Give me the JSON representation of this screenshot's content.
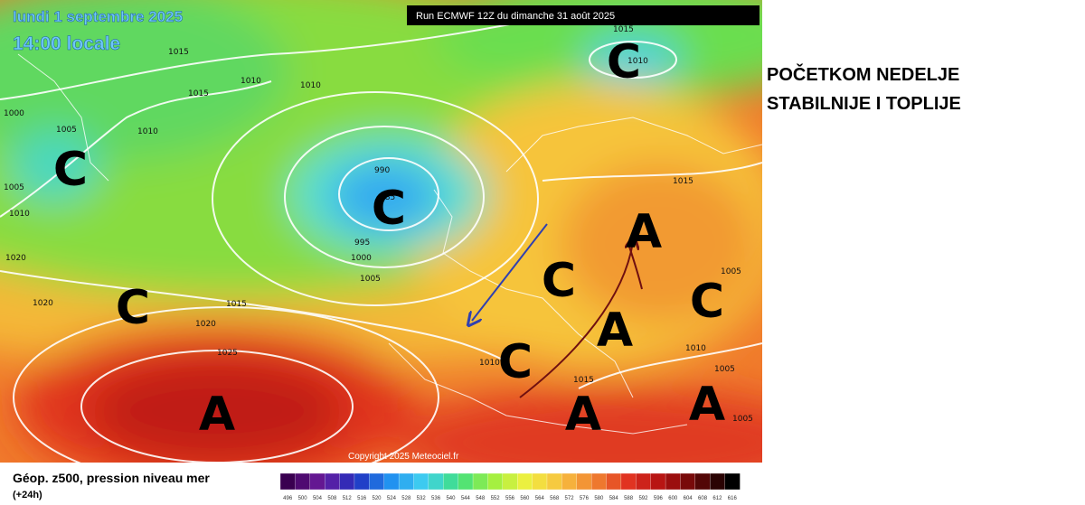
{
  "header": {
    "date": "lundi 1 septembre 2025",
    "time": "14:00 locale",
    "run": "Run ECMWF 12Z du dimanche 31 août 2025"
  },
  "annotation": {
    "lines": [
      "POČETKOM NEDELJE",
      "STABILNIJE I TOPLIJE"
    ]
  },
  "map": {
    "copyright": "Copyright 2025 Meteociel.fr",
    "isobar_labels": [
      "1015",
      "1010",
      "1015",
      "1010",
      "1000",
      "1005",
      "1010",
      "1005",
      "1010",
      "990",
      "985",
      "995",
      "1000",
      "1005",
      "1020",
      "1020",
      "1015",
      "1020",
      "1025",
      "1015",
      "1010",
      "1015",
      "1005",
      "1010",
      "1005",
      "1005",
      "1015",
      "1010"
    ],
    "pressure_systems": [
      "C",
      "C",
      "C",
      "A",
      "C",
      "A",
      "C",
      "C",
      "A",
      "C",
      "A",
      "A"
    ]
  },
  "legend": {
    "title": "Géop. z500, pression niveau mer",
    "subtitle": "(+24h)",
    "labels": [
      496,
      500,
      504,
      508,
      512,
      516,
      520,
      524,
      528,
      532,
      536,
      540,
      544,
      548,
      552,
      556,
      560,
      564,
      568,
      572,
      576,
      580,
      584,
      588,
      592,
      596,
      600,
      604,
      608,
      612,
      616
    ],
    "colors": [
      "#3a0050",
      "#6a1a9c",
      "#2030c0",
      "#2090f0",
      "#40d0f0",
      "#40e080",
      "#a0f040",
      "#f0f040",
      "#f8c040",
      "#f08030",
      "#e03020",
      "#b01010",
      "#600808",
      "#000000"
    ]
  }
}
